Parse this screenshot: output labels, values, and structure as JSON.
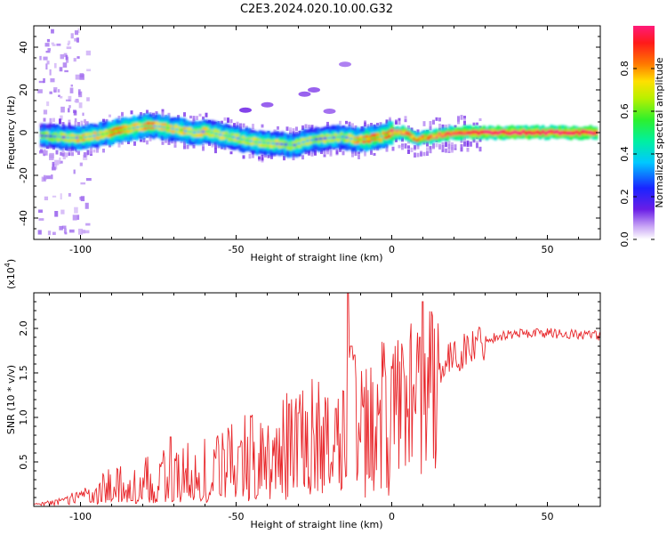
{
  "figure_title": "C2E3.2024.020.10.00.G32",
  "colors": {
    "snr_line": "#e8262a",
    "frame": "#000000",
    "background": "#ffffff"
  },
  "chart_data": [
    {
      "type": "heatmap",
      "title": "",
      "xlabel": "Height of straight line (km)",
      "ylabel": "Frequency (Hz)",
      "xlim": [
        -115,
        67
      ],
      "ylim": [
        -50,
        50
      ],
      "x_ticks": [
        -100,
        -50,
        0,
        50
      ],
      "x_tick_labels": [
        "-100",
        "-50",
        "0",
        "50"
      ],
      "y_ticks": [
        -40,
        -20,
        0,
        20,
        40
      ],
      "y_tick_labels": [
        "-40",
        "-20",
        "0",
        "20",
        "40"
      ],
      "colorbar": {
        "label": "Normalized spectral amplitude",
        "range": [
          0,
          1
        ],
        "ticks": [
          0.0,
          0.2,
          0.4,
          0.6,
          0.8
        ],
        "tick_labels": [
          "0.0",
          "0.2",
          "0.4",
          "0.6",
          "0.8"
        ],
        "colormap": "rainbow (white-purple-blue-cyan-green-yellow-red-magenta)"
      },
      "ridge": {
        "description": "dominant spectral line frequency vs height",
        "x": [
          -113,
          -108,
          -104,
          -100,
          -96,
          -92,
          -88,
          -84,
          -80,
          -76,
          -72,
          -68,
          -64,
          -60,
          -56,
          -52,
          -48,
          -44,
          -40,
          -36,
          -32,
          -28,
          -24,
          -20,
          -16,
          -12,
          -8,
          -4,
          0,
          4,
          6,
          8,
          10,
          12,
          16,
          20,
          25,
          30,
          40,
          50,
          60,
          66
        ],
        "frequency": [
          -1.5,
          -2,
          -2.5,
          -2.5,
          -1.5,
          -0.5,
          1,
          2,
          3,
          3,
          2,
          1,
          0,
          0.5,
          -1,
          -2,
          -3.5,
          -4.5,
          -5,
          -5.5,
          -6,
          -4,
          -3,
          -2.5,
          -2,
          -3.5,
          -3,
          -2,
          0,
          0,
          -2,
          -3,
          -2.5,
          -2,
          -1,
          0,
          0,
          0,
          0,
          0,
          0,
          0
        ],
        "amplitude": [
          0.25,
          0.3,
          0.35,
          0.45,
          0.4,
          0.45,
          0.6,
          0.45,
          0.5,
          0.45,
          0.4,
          0.45,
          0.4,
          0.4,
          0.35,
          0.35,
          0.35,
          0.35,
          0.4,
          0.35,
          0.35,
          0.35,
          0.3,
          0.35,
          0.3,
          0.45,
          0.6,
          0.5,
          0.75,
          0.8,
          0.7,
          0.65,
          0.7,
          0.75,
          0.85,
          0.85,
          0.9,
          0.95,
          0.95,
          0.95,
          0.95,
          0.95
        ]
      },
      "blobs": [
        {
          "x": -47,
          "f": 10.5,
          "amp": 0.08
        },
        {
          "x": -40,
          "f": 13,
          "amp": 0.06
        },
        {
          "x": -28,
          "f": 18,
          "amp": 0.06
        },
        {
          "x": -25,
          "f": 20,
          "amp": 0.06
        },
        {
          "x": -15,
          "f": 32,
          "amp": 0.04
        },
        {
          "x": -20,
          "f": 10,
          "amp": 0.05
        }
      ]
    },
    {
      "type": "line",
      "title": "",
      "xlabel": "Height of straight line (km)",
      "ylabel": "SNR (10 * v/v)",
      "y_multiplier_label": "(x10",
      "y_multiplier_exp": "4",
      "y_multiplier_close": ")",
      "xlim": [
        -115,
        67
      ],
      "ylim": [
        0,
        24000
      ],
      "x_ticks": [
        -100,
        -50,
        0,
        50
      ],
      "x_tick_labels": [
        "-100",
        "-50",
        "0",
        "50"
      ],
      "y_ticks": [
        5000,
        10000,
        15000,
        20000
      ],
      "y_tick_labels": [
        "0.5",
        "1.0",
        "1.5",
        "2.0"
      ],
      "series": [
        {
          "values_description": "noisy SNR envelope",
          "x": [
            -115,
            -110,
            -105,
            -100,
            -95,
            -90,
            -85,
            -80,
            -75,
            -70,
            -65,
            -60,
            -55,
            -50,
            -45,
            -40,
            -35,
            -30,
            -25,
            -20,
            -17,
            -15,
            -14,
            -13,
            -12,
            -10,
            -8,
            -5,
            -2,
            0,
            3,
            5,
            7,
            9,
            10,
            11,
            12,
            14,
            17,
            20,
            25,
            30,
            35,
            40,
            45,
            50,
            55,
            60,
            67
          ],
          "y": [
            200,
            500,
            900,
            1400,
            1900,
            2300,
            2600,
            2900,
            3200,
            3600,
            4000,
            4400,
            4800,
            5200,
            5700,
            6200,
            6800,
            7400,
            7900,
            8400,
            9000,
            9500,
            10000,
            9800,
            9600,
            9300,
            9600,
            10200,
            10900,
            11600,
            12400,
            13100,
            12500,
            11000,
            11800,
            12800,
            14000,
            15000,
            16000,
            16800,
            17800,
            18700,
            19200,
            19400,
            19500,
            19500,
            19400,
            19300,
            19200
          ],
          "spikes": [
            {
              "x": -14,
              "y": 24000
            },
            {
              "x": -13,
              "y": 18000
            },
            {
              "x": -12,
              "y": 17000
            },
            {
              "x": 10,
              "y": 23000
            },
            {
              "x": 9,
              "y": 19000
            },
            {
              "x": -71,
              "y": 7800
            },
            {
              "x": -49,
              "y": 6700
            },
            {
              "x": -33,
              "y": 11500
            },
            {
              "x": -30,
              "y": 10500
            },
            {
              "x": -18,
              "y": 11000
            }
          ]
        }
      ]
    }
  ]
}
